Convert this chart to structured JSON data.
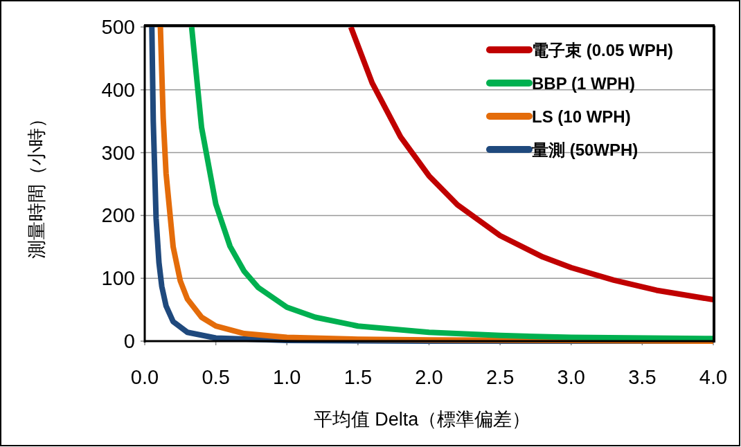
{
  "chart_data": {
    "type": "line",
    "xlabel": "平均值 Delta（標準偏差）",
    "ylabel": "測量時間（小時）",
    "xlim": [
      0,
      4
    ],
    "ylim": [
      0,
      500
    ],
    "xticks": [
      {
        "value": 0,
        "label": "0.0"
      },
      {
        "value": 0.5,
        "label": "0.5"
      },
      {
        "value": 1,
        "label": "1.0"
      },
      {
        "value": 1.5,
        "label": "1.5"
      },
      {
        "value": 2,
        "label": "2.0"
      },
      {
        "value": 2.5,
        "label": "2.5"
      },
      {
        "value": 3,
        "label": "3.0"
      },
      {
        "value": 3.5,
        "label": "3.5"
      },
      {
        "value": 4,
        "label": "4.0"
      }
    ],
    "yticks": [
      0,
      100,
      200,
      300,
      400,
      500
    ],
    "grid": "y",
    "legend": "top right",
    "line_style": "solid",
    "series": [
      {
        "name": "電子束 (0.05 WPH)",
        "color": "#c00000",
        "x": [
          1.45,
          1.6,
          1.8,
          2.0,
          2.2,
          2.5,
          2.8,
          3.0,
          3.3,
          3.6,
          4.0
        ],
        "values": [
          500,
          411,
          325,
          263,
          217,
          168,
          134,
          117,
          97,
          81,
          66
        ]
      },
      {
        "name": "BBP (1 WPH)",
        "color": "#00b050",
        "x": [
          0.33,
          0.4,
          0.5,
          0.6,
          0.7,
          0.8,
          1.0,
          1.2,
          1.5,
          2.0,
          2.5,
          3.0,
          4.0
        ],
        "values": [
          500,
          340,
          218,
          151,
          111,
          85,
          54,
          38,
          24,
          14,
          9,
          6,
          4
        ]
      },
      {
        "name": "LS (10 WPH)",
        "color": "#e46c0a",
        "x": [
          0.11,
          0.13,
          0.15,
          0.2,
          0.25,
          0.3,
          0.4,
          0.5,
          0.7,
          1.0,
          1.5,
          2.0,
          3.0,
          4.0
        ],
        "values": [
          500,
          355,
          267,
          150,
          96,
          67,
          38,
          24,
          12,
          6,
          3,
          2,
          1,
          0
        ]
      },
      {
        "name": "量測 (50WPH)",
        "color": "#1f497d",
        "x": [
          0.05,
          0.06,
          0.08,
          0.1,
          0.12,
          0.15,
          0.2,
          0.3,
          0.5,
          1.0,
          2.0,
          4.0
        ],
        "values": [
          500,
          350,
          195,
          125,
          87,
          56,
          31,
          14,
          5,
          1,
          0,
          0
        ]
      }
    ]
  }
}
